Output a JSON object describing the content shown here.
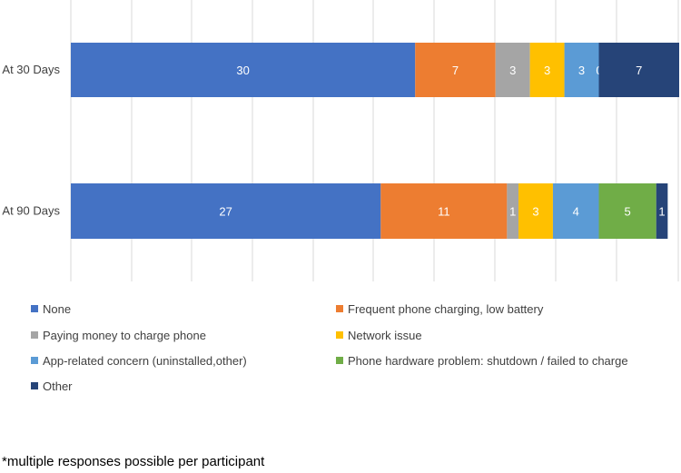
{
  "chart_data": {
    "type": "bar",
    "orientation": "horizontal",
    "stacked": true,
    "categories": [
      "At 30 Days",
      "At 90 Days"
    ],
    "xlim": [
      0,
      53
    ],
    "grid": true,
    "series": [
      {
        "name": "None",
        "values": [
          30,
          27
        ],
        "color": "#4472C4"
      },
      {
        "name": "Frequent phone charging, low battery",
        "values": [
          7,
          11
        ],
        "color": "#ED7D31"
      },
      {
        "name": "Paying money to charge phone",
        "values": [
          3,
          1
        ],
        "color": "#A5A5A5"
      },
      {
        "name": "Network issue",
        "values": [
          3,
          3
        ],
        "color": "#FFC000"
      },
      {
        "name": "App-related concern (uninstalled,other)",
        "values": [
          3,
          4
        ],
        "color": "#5B9BD5"
      },
      {
        "name": "Phone hardware problem: shutdown / failed to charge",
        "values": [
          0,
          5
        ],
        "color": "#70AD47"
      },
      {
        "name": "Other",
        "values": [
          7,
          1
        ],
        "color": "#264478"
      }
    ],
    "legend_position": "bottom"
  },
  "footnote": "*multiple responses possible per participant"
}
